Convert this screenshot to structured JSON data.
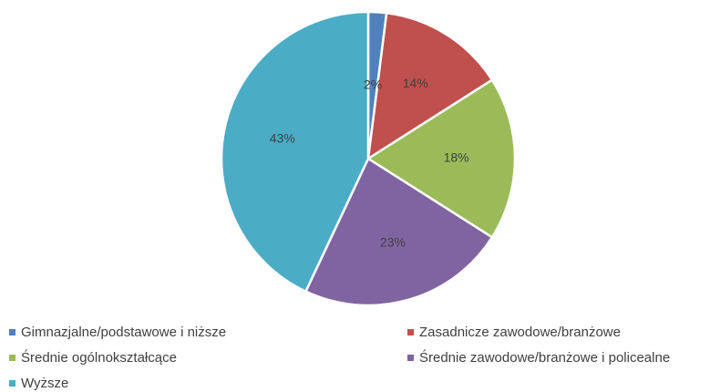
{
  "chart_data": {
    "type": "pie",
    "slices": [
      {
        "label": "Gimnazjalne/podstawowe i niższe",
        "value": 2,
        "display": "2%",
        "color": "#4f81bd"
      },
      {
        "label": "Zasadnicze zawodowe/branżowe",
        "value": 14,
        "display": "14%",
        "color": "#c0504d"
      },
      {
        "label": "Średnie ogólnokształcące",
        "value": 18,
        "display": "18%",
        "color": "#9bbb59"
      },
      {
        "label": "Średnie zawodowe/branżowe i policealne",
        "value": 23,
        "display": "23%",
        "color": "#8064a2"
      },
      {
        "label": "Wyższe",
        "value": 43,
        "display": "43%",
        "color": "#4bacc6"
      }
    ],
    "legend_position": "bottom"
  }
}
